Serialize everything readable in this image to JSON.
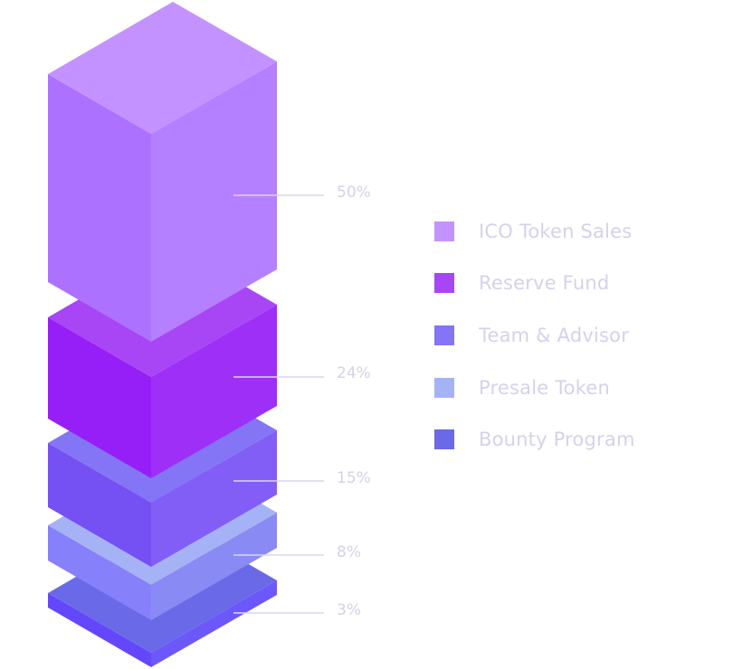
{
  "chart_data": {
    "type": "stacked-isometric-bar",
    "categories": [
      "ICO Token Sales",
      "Reserve Fund",
      "Team & Advisor",
      "Presale Token",
      "Bounty Program"
    ],
    "values": [
      50,
      24,
      15,
      8,
      3
    ],
    "labels": [
      "50%",
      "24%",
      "15%",
      "8%",
      "3%"
    ],
    "legend_position": "right",
    "colors": [
      "#c392ff",
      "#a845f5",
      "#8474f6",
      "#a6b2f6",
      "#6a6ae8"
    ],
    "face_colors": [
      {
        "top": "#c392ff",
        "left": "#ac72ff",
        "right": "#b580ff"
      },
      {
        "top": "#a845f5",
        "left": "#961ef6",
        "right": "#9d2ff7"
      },
      {
        "top": "#8474f6",
        "left": "#7550f3",
        "right": "#825df6"
      },
      {
        "top": "#a6b2f6",
        "left": "#8780fb",
        "right": "#8a8af5"
      },
      {
        "top": "#6a6ae8",
        "left": "#6447fb",
        "right": "#6c57fa"
      }
    ]
  }
}
